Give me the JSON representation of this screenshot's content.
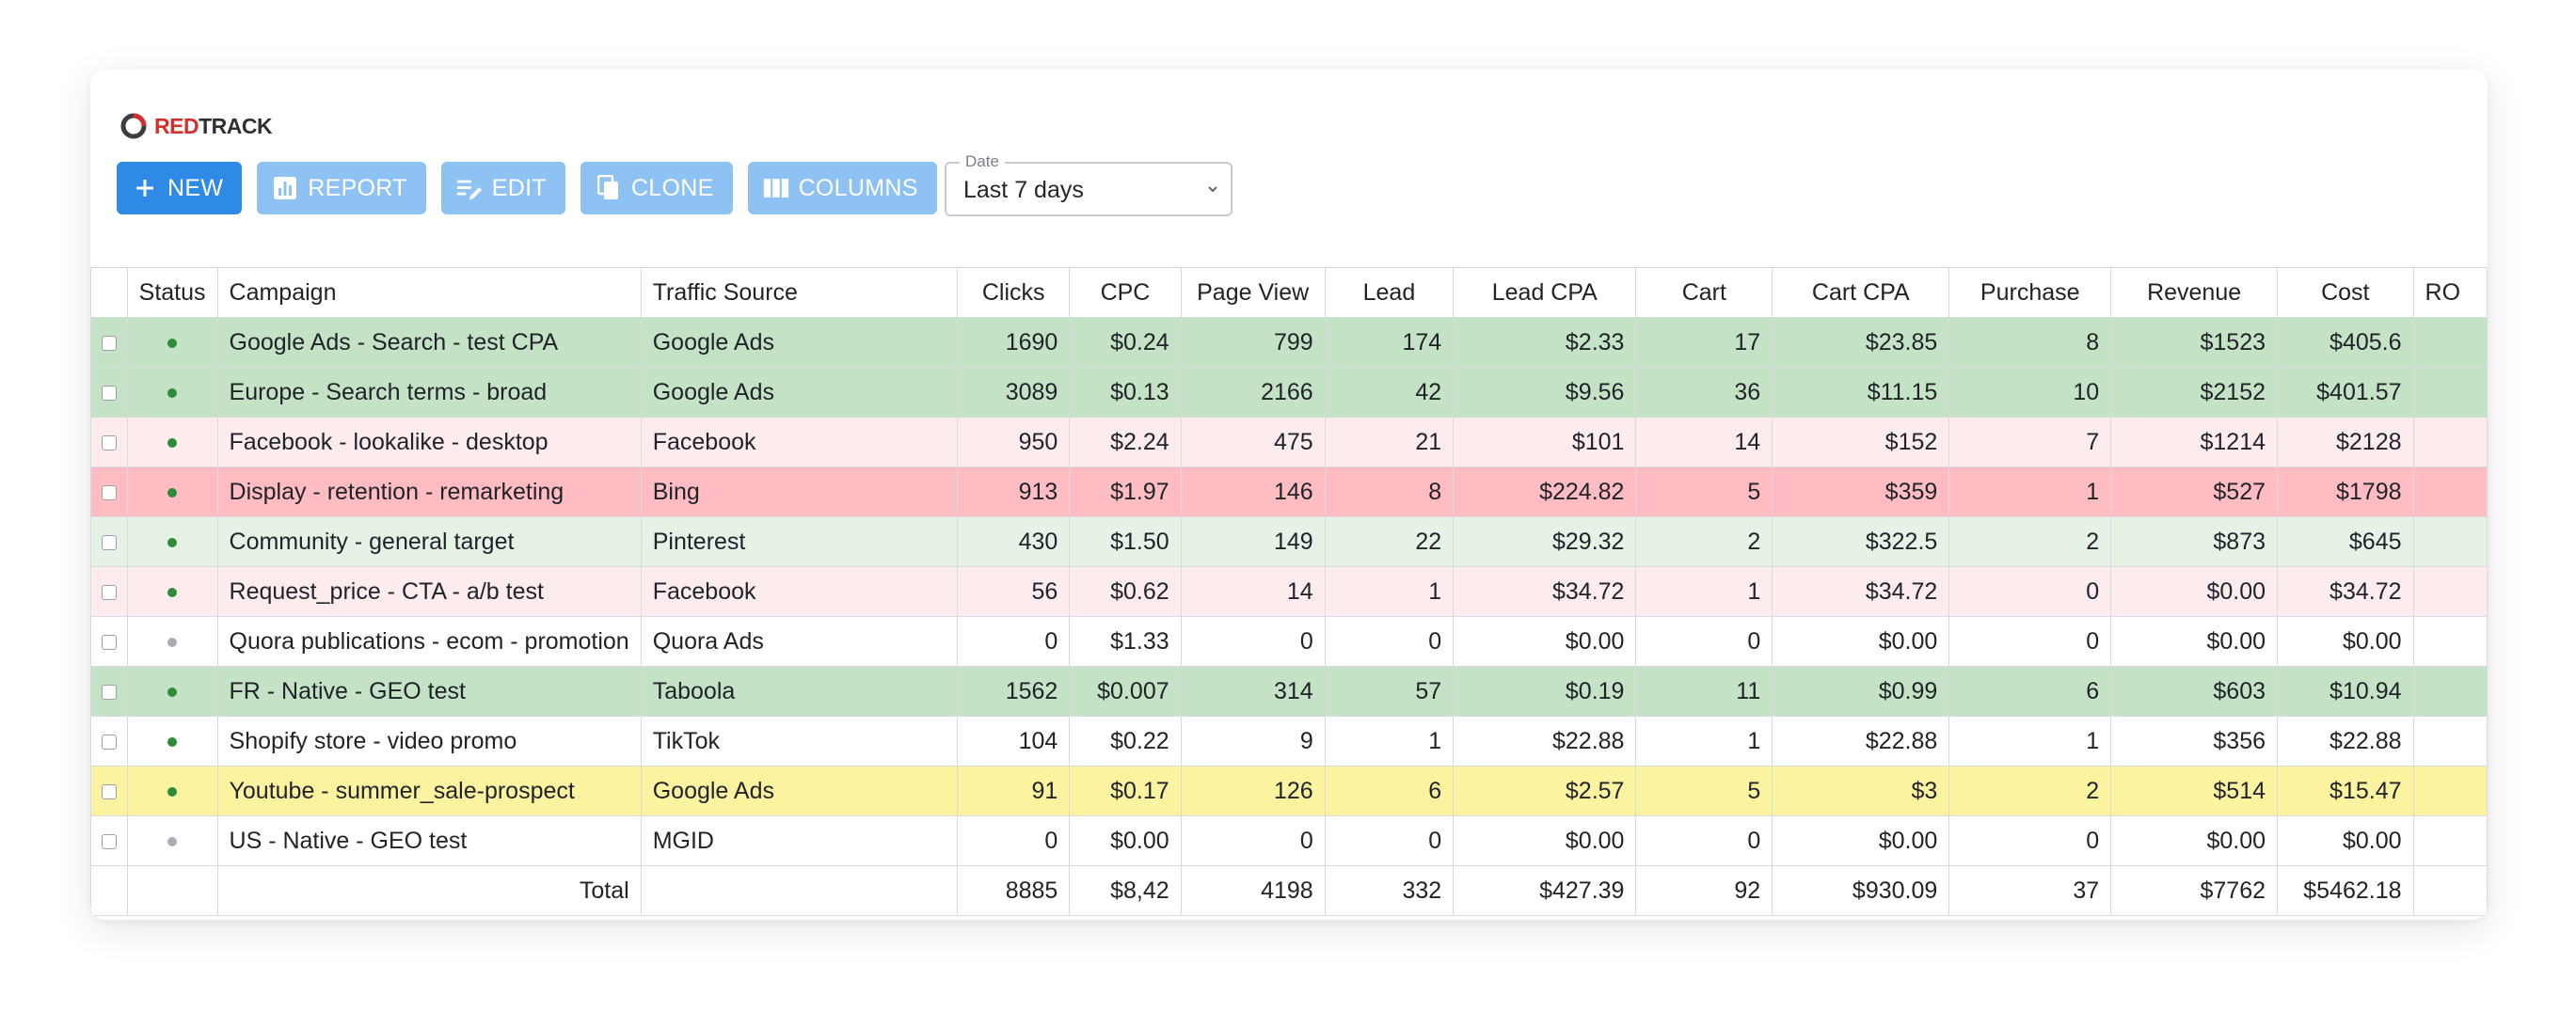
{
  "brand": {
    "prefix": "RED",
    "suffix": "TRACK"
  },
  "toolbar": {
    "buttons": [
      {
        "label": "NEW",
        "icon": "plus-icon",
        "style": "primary"
      },
      {
        "label": "REPORT",
        "icon": "chart-icon",
        "style": "muted"
      },
      {
        "label": "EDIT",
        "icon": "edit-icon",
        "style": "muted"
      },
      {
        "label": "CLONE",
        "icon": "copy-icon",
        "style": "muted"
      },
      {
        "label": "COLUMNS",
        "icon": "columns-icon",
        "style": "muted"
      }
    ]
  },
  "date_filter": {
    "label": "Date",
    "value": "Last 7 days"
  },
  "colors": {
    "primary": "#2f8ae5",
    "muted": "#8ec2f2",
    "green_strong": "#c4e2c6",
    "green_light": "#e6f2e6",
    "red_strong": "#ffbcc3",
    "red_light": "#fdecee",
    "yellow": "#fcf3a1",
    "white": "#ffffff",
    "active_dot": "#2e8b3a",
    "inactive_dot": "#a8adb3"
  },
  "table": {
    "columns": [
      "",
      "Status",
      "Campaign",
      "Traffic Source",
      "Clicks",
      "CPC",
      "Page View",
      "Lead",
      "Lead CPA",
      "Cart",
      "Cart CPA",
      "Purchase",
      "Revenue",
      "Cost",
      "RO"
    ],
    "rows": [
      {
        "status": "active",
        "bg": "green_strong",
        "cells": [
          "Google Ads - Search - test CPA",
          "Google Ads",
          "1690",
          "$0.24",
          "799",
          "174",
          "$2.33",
          "17",
          "$23.85",
          "8",
          "$1523",
          "$405.6",
          ""
        ]
      },
      {
        "status": "active",
        "bg": "green_strong",
        "cells": [
          "Europe - Search terms - broad",
          "Google Ads",
          "3089",
          "$0.13",
          "2166",
          "42",
          "$9.56",
          "36",
          "$11.15",
          "10",
          "$2152",
          "$401.57",
          ""
        ]
      },
      {
        "status": "active",
        "bg": "red_light",
        "cells": [
          "Facebook - lookalike - desktop",
          "Facebook",
          "950",
          "$2.24",
          "475",
          "21",
          "$101",
          "14",
          "$152",
          "7",
          "$1214",
          "$2128",
          ""
        ]
      },
      {
        "status": "active",
        "bg": "red_strong",
        "cells": [
          "Display - retention - remarketing",
          "Bing",
          "913",
          "$1.97",
          "146",
          "8",
          "$224.82",
          "5",
          "$359",
          "1",
          "$527",
          "$1798",
          ""
        ]
      },
      {
        "status": "active",
        "bg": "green_light",
        "cells": [
          "Community - general target",
          "Pinterest",
          "430",
          "$1.50",
          "149",
          "22",
          "$29.32",
          "2",
          "$322.5",
          "2",
          "$873",
          "$645",
          ""
        ]
      },
      {
        "status": "active",
        "bg": "red_light",
        "cells": [
          "Request_price - CTA - a/b test",
          "Facebook",
          "56",
          "$0.62",
          "14",
          "1",
          "$34.72",
          "1",
          "$34.72",
          "0",
          "$0.00",
          "$34.72",
          ""
        ]
      },
      {
        "status": "inactive",
        "bg": "white",
        "cells": [
          "Quora publications - ecom - promotion",
          "Quora Ads",
          "0",
          "$1.33",
          "0",
          "0",
          "$0.00",
          "0",
          "$0.00",
          "0",
          "$0.00",
          "$0.00",
          ""
        ]
      },
      {
        "status": "active",
        "bg": "green_strong",
        "cells": [
          "FR - Native - GEO test",
          "Taboola",
          "1562",
          "$0.007",
          "314",
          "57",
          "$0.19",
          "11",
          "$0.99",
          "6",
          "$603",
          "$10.94",
          ""
        ]
      },
      {
        "status": "active",
        "bg": "white",
        "cells": [
          "Shopify store - video promo",
          "TikTok",
          "104",
          "$0.22",
          "9",
          "1",
          "$22.88",
          "1",
          "$22.88",
          "1",
          "$356",
          "$22.88",
          ""
        ]
      },
      {
        "status": "active",
        "bg": "yellow",
        "cells": [
          "Youtube - summer_sale-prospect",
          "Google Ads",
          "91",
          "$0.17",
          "126",
          "6",
          "$2.57",
          "5",
          "$3",
          "2",
          "$514",
          "$15.47",
          ""
        ]
      },
      {
        "status": "inactive",
        "bg": "white",
        "cells": [
          "US - Native - GEO test",
          "MGID",
          "0",
          "$0.00",
          "0",
          "0",
          "$0.00",
          "0",
          "$0.00",
          "0",
          "$0.00",
          "$0.00",
          ""
        ]
      }
    ],
    "total": {
      "label": "Total",
      "cells": [
        "",
        "8885",
        "$8,42",
        "4198",
        "332",
        "$427.39",
        "92",
        "$930.09",
        "37",
        "$7762",
        "$5462.18",
        ""
      ]
    }
  }
}
